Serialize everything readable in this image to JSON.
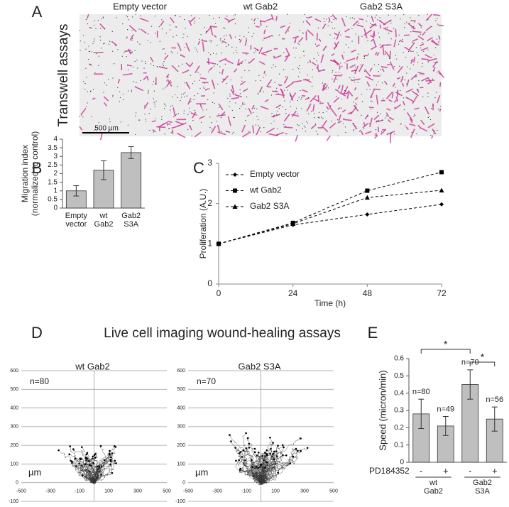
{
  "panel_a": {
    "letter": "A",
    "side_label": "Transwell assays",
    "columns": [
      "Empty vector",
      "wt Gab2",
      "Gab2 S3A"
    ],
    "scale_bar": "500 µm"
  },
  "panel_d": {
    "letter": "D",
    "title": "Live cell imaging wound-healing assays"
  },
  "chart_data": [
    {
      "type": "bar",
      "letter": "B",
      "y_label": [
        "Migration index",
        "(normalized to control)"
      ],
      "categories": [
        "Empty vector",
        "wt Gab2",
        "Gab2 S3A"
      ],
      "values": [
        1,
        2.2,
        3.22
      ],
      "errors": [
        0.3,
        0.55,
        0.35
      ],
      "color": "#bfbfbf",
      "ylim": [
        0,
        4
      ],
      "yticks": [
        0,
        0.5,
        1,
        1.5,
        2,
        2.5,
        3,
        3.5,
        4
      ]
    },
    {
      "type": "line",
      "letter": "C",
      "y_label": "Proliferation (A.U.)",
      "x_label": "Time (h)",
      "x": [
        0,
        24,
        48,
        72
      ],
      "xlim": [
        0,
        72
      ],
      "xticks": [
        0,
        24,
        48,
        72
      ],
      "ylim": [
        0,
        3
      ],
      "yticks": [
        0,
        1,
        2,
        3
      ],
      "legend": "top-left",
      "line_style": "dashed",
      "series": [
        {
          "name": "Empty vector",
          "color": "#000000",
          "marker": "diamond",
          "values": [
            1,
            1.47,
            1.73,
            1.98
          ]
        },
        {
          "name": "wt Gab2",
          "color": "#000000",
          "marker": "square",
          "values": [
            1,
            1.52,
            2.32,
            2.78
          ]
        },
        {
          "name": "Gab2 S3A",
          "color": "#000000",
          "marker": "triangle",
          "values": [
            1,
            1.5,
            2.15,
            2.33
          ]
        }
      ]
    },
    {
      "type": "trajectory",
      "title": "wt Gab2",
      "n_label": "n=80",
      "unit_label": "µm",
      "xlim": [
        -500,
        500
      ],
      "xticks": [
        -500,
        -300,
        -100,
        100,
        300,
        500
      ],
      "ylim": [
        -100,
        600
      ],
      "yticks": [
        -100,
        0,
        100,
        200,
        300,
        400,
        500,
        600
      ],
      "grid": true
    },
    {
      "type": "trajectory",
      "title": "Gab2 S3A",
      "n_label": "n=70",
      "unit_label": "µm",
      "xlim": [
        -500,
        500
      ],
      "xticks": [
        -500,
        -300,
        -100,
        100,
        300,
        500
      ],
      "ylim": [
        -100,
        600
      ],
      "yticks": [
        -100,
        0,
        100,
        200,
        300,
        400,
        500,
        600
      ],
      "grid": true
    },
    {
      "type": "bar",
      "letter": "E",
      "y_label": "Speed (micron/min)",
      "values": [
        0.28,
        0.21,
        0.45,
        0.25
      ],
      "errors": [
        0.085,
        0.055,
        0.085,
        0.07
      ],
      "annotations": [
        "n=80",
        "n=49",
        "n=70",
        "n=56"
      ],
      "treatment_label": "PD184352",
      "treatment": [
        "-",
        "+",
        "-",
        "+"
      ],
      "groups": [
        "wt Gab2",
        "Gab2 S3A"
      ],
      "significance": [
        {
          "from": 0,
          "to": 2,
          "label": "*"
        },
        {
          "from": 2,
          "to": 3,
          "label": "*"
        }
      ],
      "color": "#bfbfbf",
      "ylim": [
        0,
        0.6
      ],
      "yticks": [
        0,
        0.1,
        0.2,
        0.3,
        0.4,
        0.5,
        0.6
      ]
    }
  ]
}
